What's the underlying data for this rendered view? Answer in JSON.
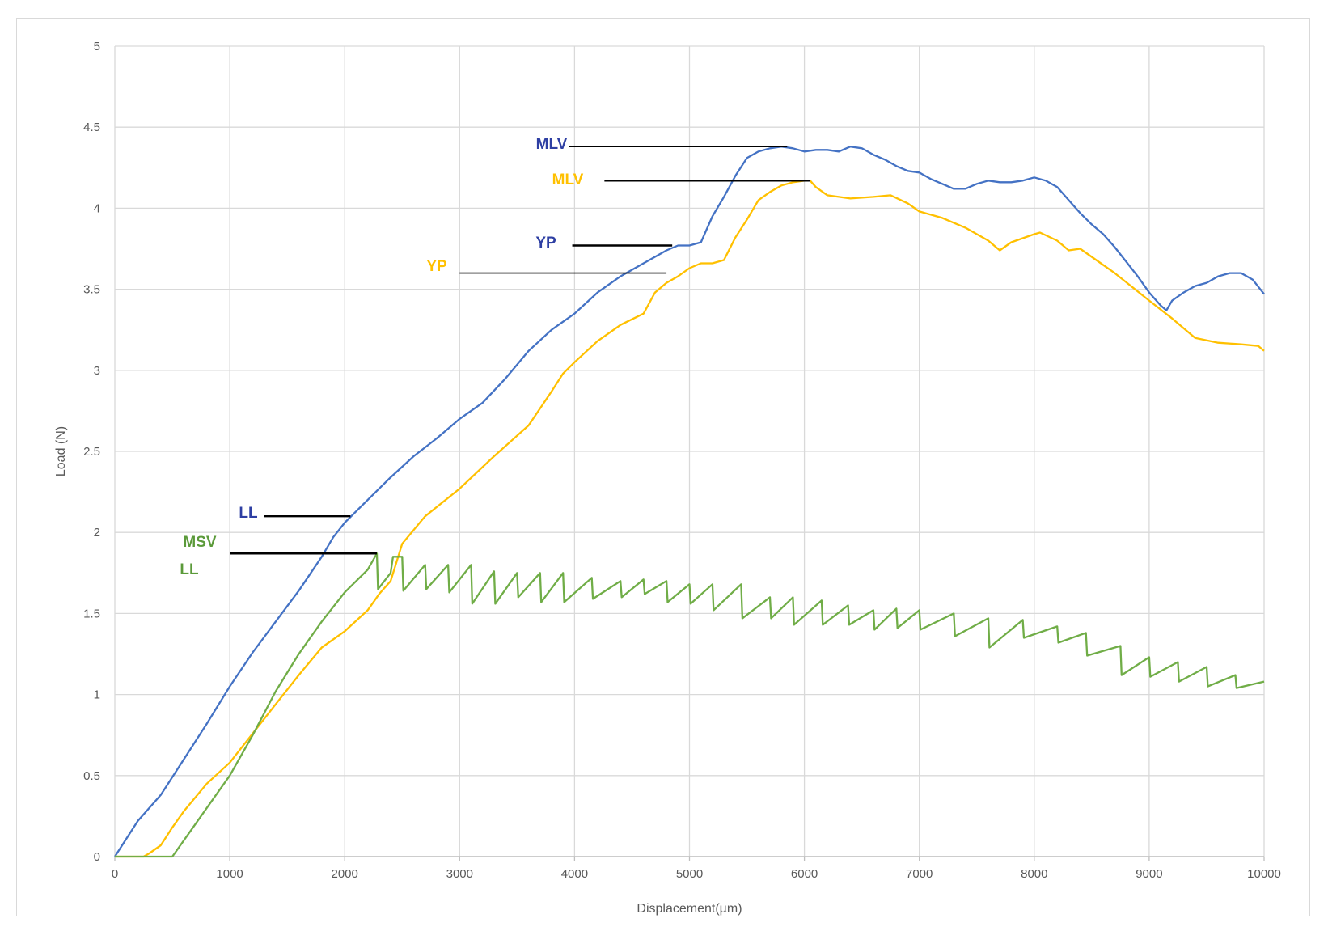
{
  "chart_data": {
    "type": "line",
    "xlabel": "Displacement(µm)",
    "ylabel": "Load (N)",
    "xlim": [
      0,
      10000
    ],
    "ylim": [
      0,
      5
    ],
    "xticks": [
      "0",
      "1000",
      "2000",
      "3000",
      "4000",
      "5000",
      "6000",
      "7000",
      "8000",
      "9000",
      "10000"
    ],
    "yticks": [
      "0",
      "0.5",
      "1",
      "1.5",
      "2",
      "2.5",
      "3",
      "3.5",
      "4",
      "4.5",
      "5"
    ],
    "grid": true,
    "series": [
      {
        "color": "#4472c4",
        "x": [
          0,
          200,
          400,
          600,
          800,
          1000,
          1200,
          1400,
          1600,
          1800,
          1900,
          2000,
          2100,
          2200,
          2400,
          2600,
          2800,
          3000,
          3200,
          3400,
          3600,
          3800,
          4000,
          4200,
          4400,
          4600,
          4800,
          4900,
          5000,
          5100,
          5200,
          5300,
          5400,
          5500,
          5600,
          5700,
          5800,
          5900,
          6000,
          6100,
          6200,
          6300,
          6400,
          6500,
          6600,
          6700,
          6800,
          6900,
          7000,
          7100,
          7200,
          7300,
          7400,
          7500,
          7600,
          7700,
          7800,
          7900,
          8000,
          8100,
          8200,
          8300,
          8400,
          8500,
          8600,
          8700,
          8800,
          8900,
          9000,
          9100,
          9150,
          9200,
          9300,
          9400,
          9500,
          9600,
          9700,
          9800,
          9900,
          10000
        ],
        "y": [
          0,
          0.22,
          0.38,
          0.6,
          0.82,
          1.05,
          1.26,
          1.45,
          1.64,
          1.85,
          1.97,
          2.06,
          2.13,
          2.2,
          2.34,
          2.47,
          2.58,
          2.7,
          2.8,
          2.95,
          3.12,
          3.25,
          3.35,
          3.48,
          3.58,
          3.66,
          3.74,
          3.77,
          3.77,
          3.79,
          3.95,
          4.07,
          4.2,
          4.31,
          4.35,
          4.37,
          4.38,
          4.37,
          4.35,
          4.36,
          4.36,
          4.35,
          4.38,
          4.37,
          4.33,
          4.3,
          4.26,
          4.23,
          4.22,
          4.18,
          4.15,
          4.12,
          4.12,
          4.15,
          4.17,
          4.16,
          4.16,
          4.17,
          4.19,
          4.17,
          4.13,
          4.05,
          3.97,
          3.9,
          3.84,
          3.76,
          3.67,
          3.58,
          3.48,
          3.4,
          3.37,
          3.43,
          3.48,
          3.52,
          3.54,
          3.58,
          3.6,
          3.6,
          3.56,
          3.47
        ]
      },
      {
        "color": "#ffc000",
        "x": [
          0,
          250,
          300,
          400,
          500,
          600,
          800,
          1000,
          1200,
          1400,
          1600,
          1800,
          2000,
          2200,
          2300,
          2400,
          2500,
          2700,
          3000,
          3300,
          3600,
          3800,
          3900,
          4000,
          4200,
          4400,
          4600,
          4700,
          4800,
          4900,
          5000,
          5100,
          5200,
          5300,
          5400,
          5500,
          5600,
          5700,
          5800,
          5900,
          6000,
          6050,
          6100,
          6200,
          6400,
          6600,
          6750,
          6900,
          7000,
          7200,
          7400,
          7600,
          7700,
          7800,
          8000,
          8050,
          8200,
          8300,
          8400,
          8500,
          8700,
          9000,
          9200,
          9400,
          9600,
          9800,
          9950,
          10000
        ],
        "y": [
          0,
          0,
          0.02,
          0.07,
          0.18,
          0.28,
          0.45,
          0.58,
          0.76,
          0.94,
          1.12,
          1.29,
          1.39,
          1.52,
          1.62,
          1.7,
          1.93,
          2.1,
          2.27,
          2.47,
          2.66,
          2.87,
          2.98,
          3.05,
          3.18,
          3.28,
          3.35,
          3.48,
          3.54,
          3.58,
          3.63,
          3.66,
          3.66,
          3.68,
          3.82,
          3.93,
          4.05,
          4.1,
          4.14,
          4.16,
          4.17,
          4.17,
          4.13,
          4.08,
          4.06,
          4.07,
          4.08,
          4.03,
          3.98,
          3.94,
          3.88,
          3.8,
          3.74,
          3.79,
          3.84,
          3.85,
          3.8,
          3.74,
          3.75,
          3.7,
          3.6,
          3.43,
          3.32,
          3.2,
          3.17,
          3.16,
          3.15,
          3.12
        ]
      },
      {
        "color": "#70ad47",
        "x": [
          0,
          500,
          700,
          900,
          1000,
          1200,
          1400,
          1600,
          1800,
          2000,
          2200,
          2280,
          2290,
          2400,
          2420,
          2500,
          2510,
          2700,
          2710,
          2900,
          2910,
          3100,
          3110,
          3300,
          3310,
          3500,
          3510,
          3700,
          3710,
          3900,
          3910,
          4150,
          4160,
          4400,
          4410,
          4600,
          4610,
          4800,
          4810,
          5000,
          5010,
          5200,
          5210,
          5450,
          5460,
          5700,
          5710,
          5900,
          5910,
          6150,
          6160,
          6380,
          6390,
          6600,
          6610,
          6800,
          6810,
          7000,
          7010,
          7300,
          7310,
          7600,
          7610,
          7900,
          7910,
          8200,
          8210,
          8450,
          8460,
          8750,
          8760,
          9000,
          9010,
          9250,
          9260,
          9500,
          9510,
          9750,
          9760,
          10000
        ],
        "y": [
          0,
          0,
          0.2,
          0.4,
          0.5,
          0.75,
          1.02,
          1.25,
          1.45,
          1.63,
          1.77,
          1.87,
          1.65,
          1.75,
          1.85,
          1.85,
          1.64,
          1.8,
          1.65,
          1.8,
          1.63,
          1.8,
          1.56,
          1.76,
          1.56,
          1.75,
          1.6,
          1.75,
          1.57,
          1.75,
          1.57,
          1.72,
          1.59,
          1.7,
          1.6,
          1.71,
          1.62,
          1.7,
          1.57,
          1.68,
          1.56,
          1.68,
          1.52,
          1.68,
          1.47,
          1.6,
          1.47,
          1.6,
          1.43,
          1.58,
          1.43,
          1.55,
          1.43,
          1.52,
          1.4,
          1.53,
          1.41,
          1.52,
          1.4,
          1.5,
          1.36,
          1.47,
          1.29,
          1.46,
          1.35,
          1.42,
          1.32,
          1.38,
          1.24,
          1.3,
          1.12,
          1.23,
          1.11,
          1.2,
          1.08,
          1.17,
          1.05,
          1.12,
          1.04,
          1.08
        ]
      }
    ],
    "annotations": [
      {
        "text": "MLV",
        "color": "#2e3fa3",
        "bold": false,
        "x1": 3950,
        "x2": 5850,
        "y": 4.38
      },
      {
        "text": "MLV",
        "color": "#ffc000",
        "bold": true,
        "x1": 4260,
        "x2": 6050,
        "y": 4.17
      },
      {
        "text": "YP",
        "color": "#2e3fa3",
        "bold": false,
        "x1": 3980,
        "x2": 4850,
        "y": 3.77
      },
      {
        "text": "YP",
        "color": "#ffc000",
        "bold": true,
        "x1": 3000,
        "x2": 4800,
        "y": 3.6
      },
      {
        "text": "LL",
        "color": "#2e3fa3",
        "bold": true,
        "x1": 1300,
        "x2": 2050,
        "y": 2.1
      },
      {
        "text": "MSV",
        "color": "#5b9a3a",
        "bold": true,
        "x1": 1000,
        "x2": 2280,
        "y": 1.87
      },
      {
        "text": "LL",
        "color": "#5b9a3a",
        "bold": true,
        "x1": null,
        "x2": null,
        "y": null
      }
    ]
  }
}
